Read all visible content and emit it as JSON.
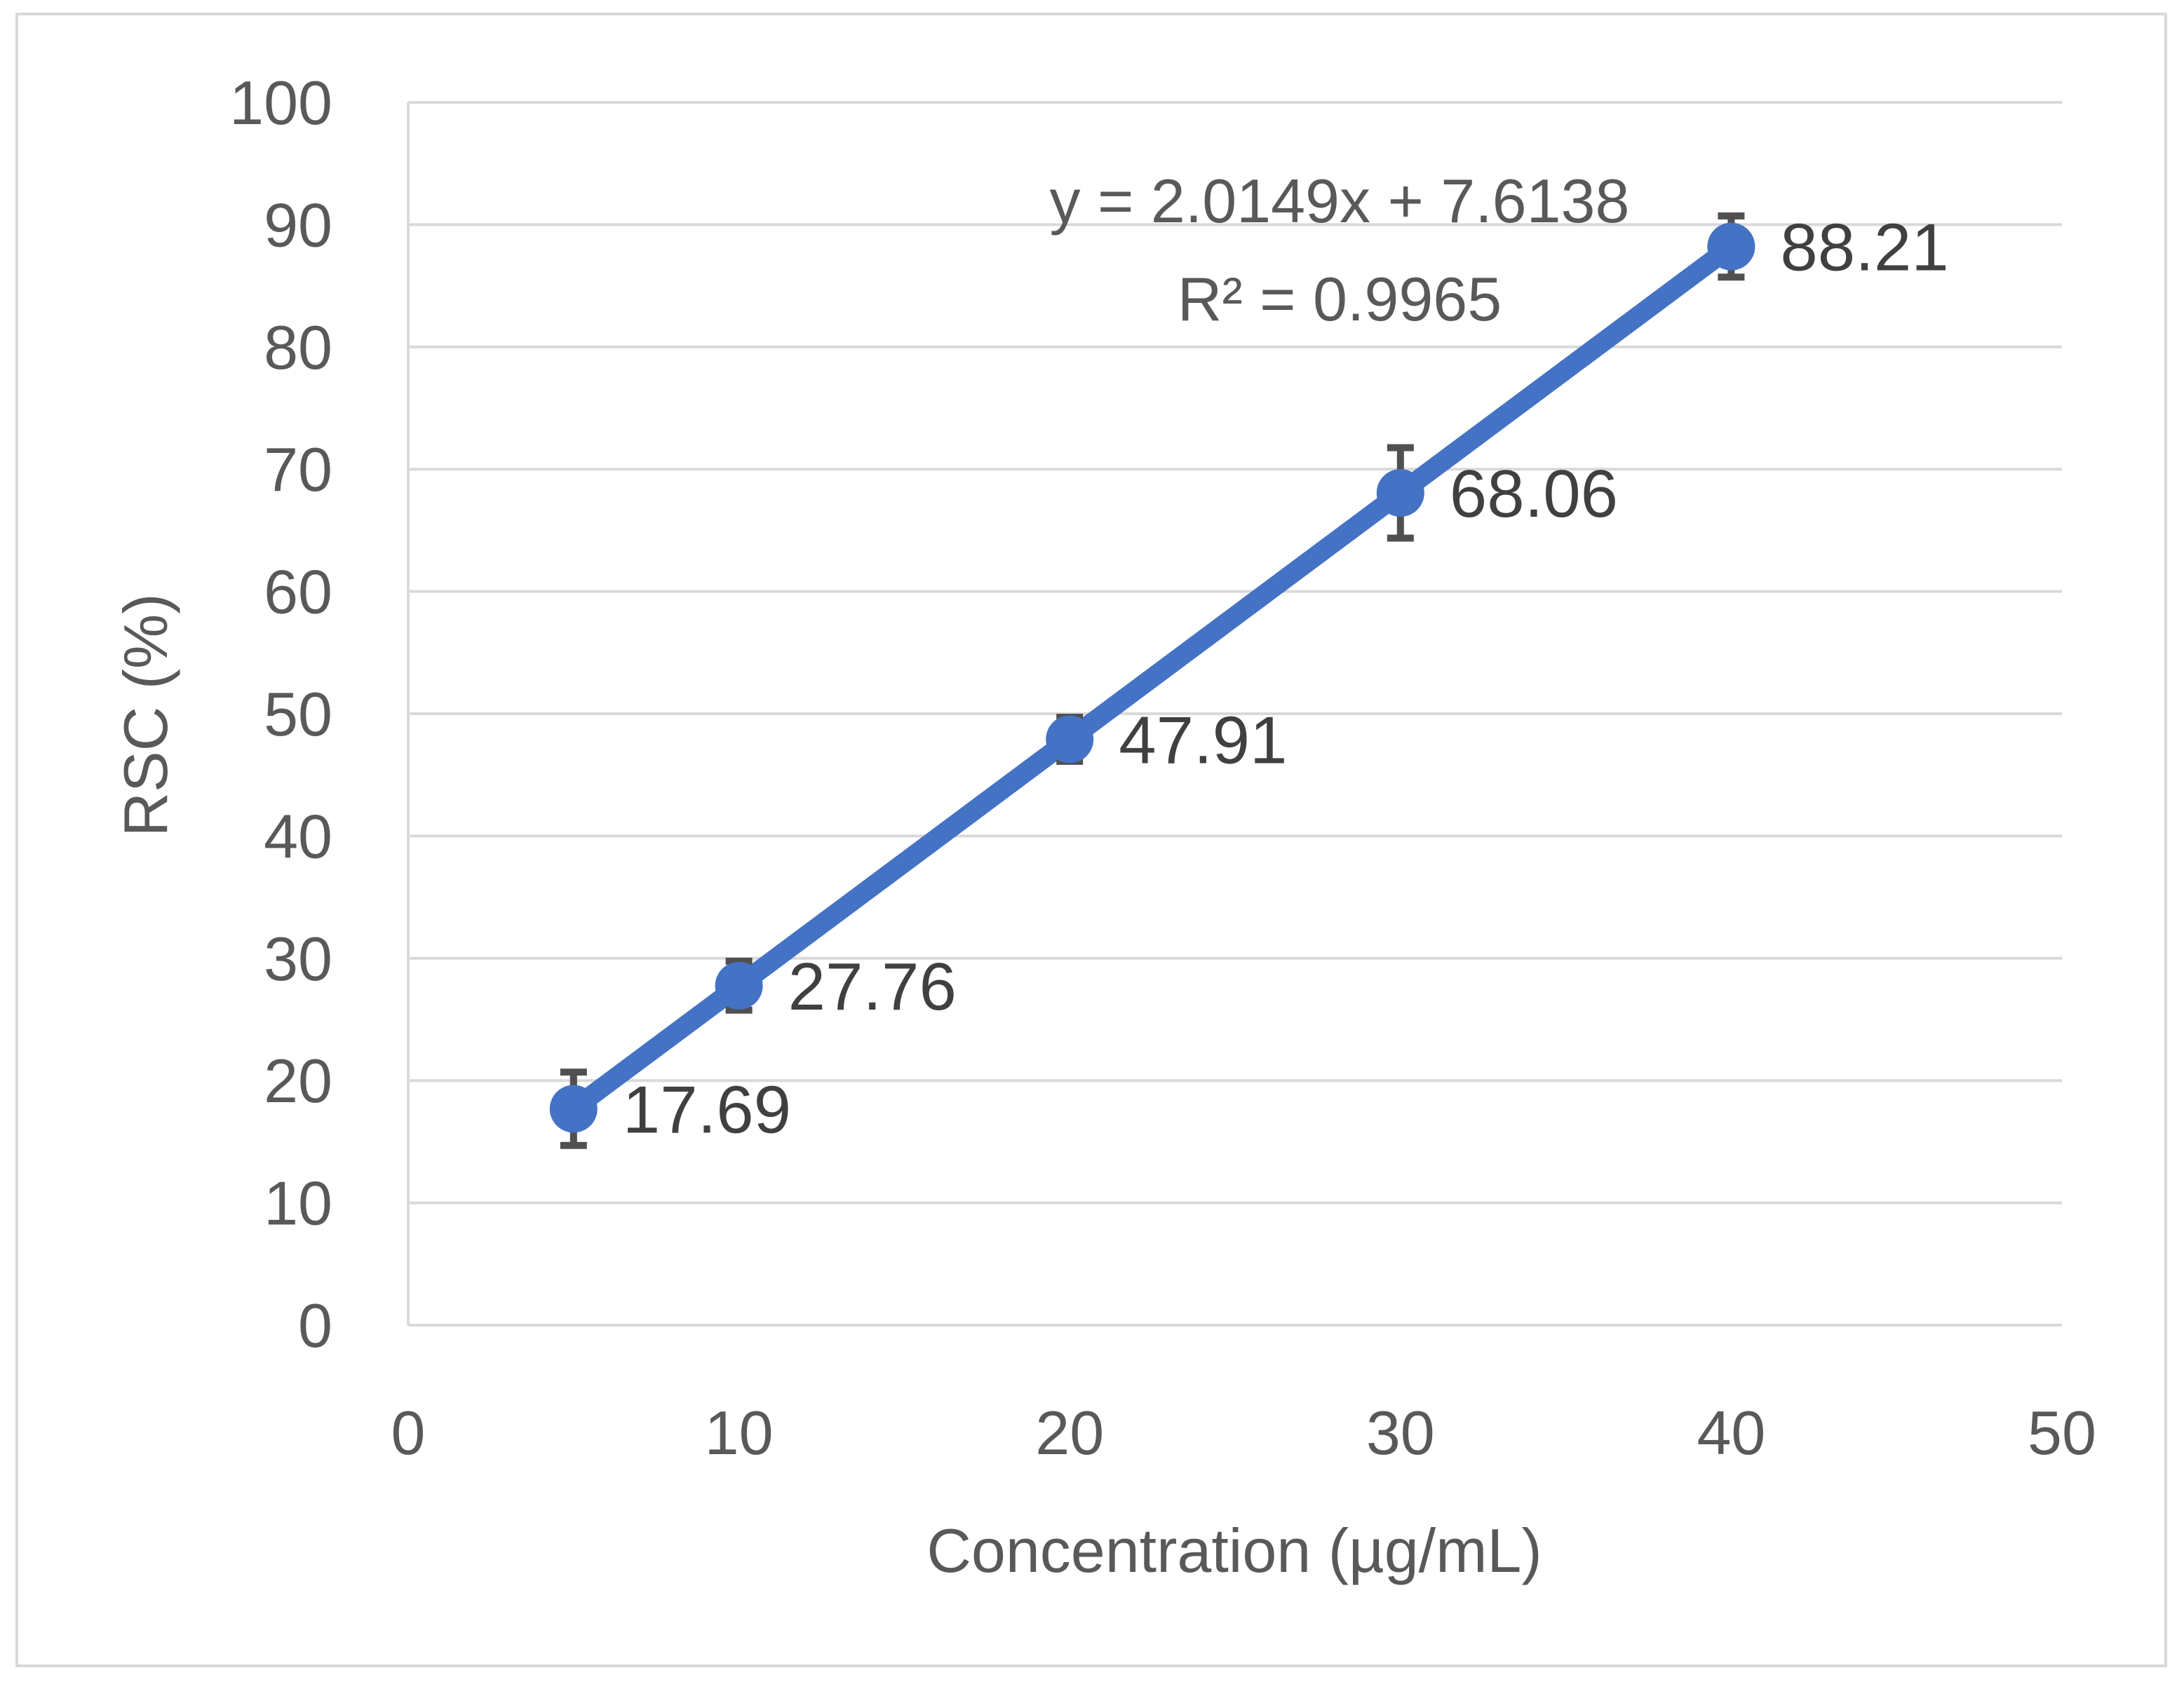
{
  "chart_data": {
    "type": "line",
    "title": "",
    "xlabel": "Concentration (µg/mL)",
    "ylabel": "RSC (%)",
    "xlim": [
      0,
      50
    ],
    "ylim": [
      0,
      100
    ],
    "x_ticks": [
      0,
      10,
      20,
      30,
      40,
      50
    ],
    "y_ticks": [
      0,
      10,
      20,
      30,
      40,
      50,
      60,
      70,
      80,
      90,
      100
    ],
    "x_tick_labels": [
      "0",
      "10",
      "20",
      "30",
      "40",
      "50"
    ],
    "y_tick_labels": [
      "0",
      "10",
      "20",
      "30",
      "40",
      "50",
      "60",
      "70",
      "80",
      "90",
      "100"
    ],
    "grid": true,
    "series": [
      {
        "name": "RSC",
        "color": "#4472c4",
        "x": [
          5,
          10,
          20,
          30,
          40
        ],
        "values": [
          17.69,
          27.76,
          47.91,
          68.06,
          88.21
        ],
        "errors": [
          3.0,
          2.0,
          1.8,
          3.7,
          2.5
        ],
        "data_labels": [
          "17.69",
          "27.76",
          "47.91",
          "68.06",
          "88.21"
        ]
      }
    ],
    "error_bar_color": "#505050",
    "trendline": {
      "equation": "y = 2.0149x + 7.6138",
      "r_squared": "R² = 0.9965"
    }
  }
}
